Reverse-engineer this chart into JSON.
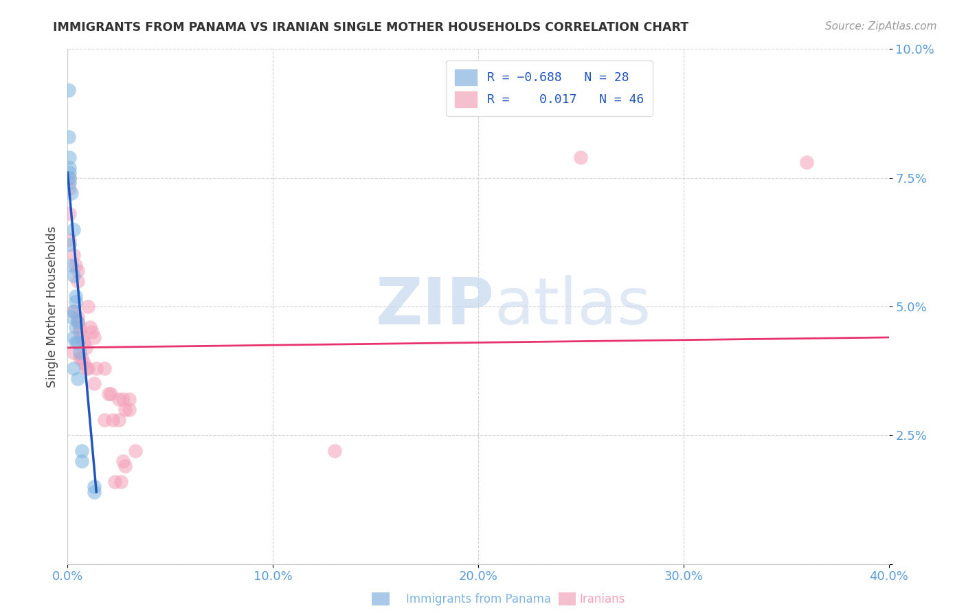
{
  "title": "IMMIGRANTS FROM PANAMA VS IRANIAN SINGLE MOTHER HOUSEHOLDS CORRELATION CHART",
  "source": "Source: ZipAtlas.com",
  "ylabel": "Single Mother Households",
  "xlim": [
    0.0,
    0.4
  ],
  "ylim": [
    0.0,
    0.1
  ],
  "xticks": [
    0.0,
    0.1,
    0.2,
    0.3,
    0.4
  ],
  "xtick_labels": [
    "0.0%",
    "10.0%",
    "20.0%",
    "30.0%",
    "40.0%"
  ],
  "yticks": [
    0.0,
    0.025,
    0.05,
    0.075,
    0.1
  ],
  "ytick_labels": [
    "",
    "2.5%",
    "5.0%",
    "7.5%",
    "10.0%"
  ],
  "blue_scatter": [
    [
      0.0005,
      0.092
    ],
    [
      0.0005,
      0.083
    ],
    [
      0.0008,
      0.079
    ],
    [
      0.001,
      0.077
    ],
    [
      0.001,
      0.076
    ],
    [
      0.001,
      0.075
    ],
    [
      0.001,
      0.074
    ],
    [
      0.002,
      0.072
    ],
    [
      0.003,
      0.065
    ],
    [
      0.001,
      0.062
    ],
    [
      0.002,
      0.058
    ],
    [
      0.003,
      0.056
    ],
    [
      0.004,
      0.052
    ],
    [
      0.004,
      0.051
    ],
    [
      0.003,
      0.049
    ],
    [
      0.002,
      0.048
    ],
    [
      0.005,
      0.047
    ],
    [
      0.004,
      0.046
    ],
    [
      0.003,
      0.044
    ],
    [
      0.004,
      0.043
    ],
    [
      0.005,
      0.043
    ],
    [
      0.006,
      0.041
    ],
    [
      0.003,
      0.038
    ],
    [
      0.005,
      0.036
    ],
    [
      0.007,
      0.022
    ],
    [
      0.007,
      0.02
    ],
    [
      0.013,
      0.015
    ],
    [
      0.013,
      0.014
    ]
  ],
  "pink_scatter": [
    [
      0.001,
      0.075
    ],
    [
      0.001,
      0.073
    ],
    [
      0.001,
      0.068
    ],
    [
      0.001,
      0.063
    ],
    [
      0.003,
      0.06
    ],
    [
      0.004,
      0.058
    ],
    [
      0.005,
      0.057
    ],
    [
      0.005,
      0.055
    ],
    [
      0.003,
      0.049
    ],
    [
      0.005,
      0.048
    ],
    [
      0.005,
      0.047
    ],
    [
      0.006,
      0.046
    ],
    [
      0.006,
      0.045
    ],
    [
      0.007,
      0.044
    ],
    [
      0.008,
      0.043
    ],
    [
      0.009,
      0.042
    ],
    [
      0.01,
      0.05
    ],
    [
      0.011,
      0.046
    ],
    [
      0.012,
      0.045
    ],
    [
      0.013,
      0.044
    ],
    [
      0.003,
      0.041
    ],
    [
      0.006,
      0.04
    ],
    [
      0.007,
      0.04
    ],
    [
      0.008,
      0.039
    ],
    [
      0.009,
      0.038
    ],
    [
      0.01,
      0.038
    ],
    [
      0.014,
      0.038
    ],
    [
      0.018,
      0.038
    ],
    [
      0.013,
      0.035
    ],
    [
      0.02,
      0.033
    ],
    [
      0.021,
      0.033
    ],
    [
      0.025,
      0.032
    ],
    [
      0.027,
      0.032
    ],
    [
      0.03,
      0.032
    ],
    [
      0.028,
      0.03
    ],
    [
      0.03,
      0.03
    ],
    [
      0.018,
      0.028
    ],
    [
      0.022,
      0.028
    ],
    [
      0.025,
      0.028
    ],
    [
      0.033,
      0.022
    ],
    [
      0.027,
      0.02
    ],
    [
      0.028,
      0.019
    ],
    [
      0.023,
      0.016
    ],
    [
      0.026,
      0.016
    ],
    [
      0.13,
      0.022
    ],
    [
      0.25,
      0.079
    ],
    [
      0.36,
      0.078
    ]
  ],
  "blue_line_x": [
    0.0,
    0.014
  ],
  "blue_line_y": [
    0.076,
    0.014
  ],
  "pink_line_x": [
    0.0,
    0.4
  ],
  "pink_line_y": [
    0.042,
    0.044
  ],
  "blue_color": "#7fb3e0",
  "pink_color": "#f4a0b8",
  "blue_line_color": "#2255bb",
  "pink_line_color": "#e8336e",
  "watermark_zip": "ZIP",
  "watermark_atlas": "atlas",
  "background_color": "#ffffff",
  "grid_color": "#cccccc",
  "title_color": "#333333",
  "tick_color": "#5b9bd5"
}
